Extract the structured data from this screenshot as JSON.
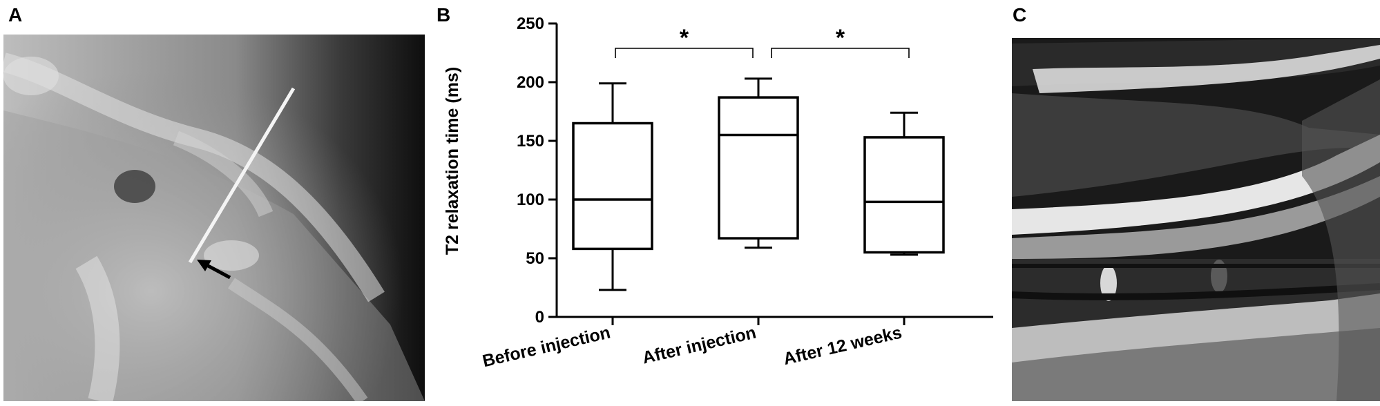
{
  "panels": {
    "a_label": "A",
    "b_label": "B",
    "c_label": "C"
  },
  "chart_data": {
    "type": "box",
    "title": "",
    "xlabel": "",
    "ylabel": "T2 relaxation time (ms)",
    "ylim": [
      0,
      250
    ],
    "yticks": [
      0,
      50,
      100,
      150,
      200,
      250
    ],
    "categories": [
      "Before injection",
      "After injection",
      "After 12 weeks"
    ],
    "boxes": [
      {
        "min": 23,
        "q1": 58,
        "median": 100,
        "q3": 165,
        "max": 199
      },
      {
        "min": 59,
        "q1": 67,
        "median": 155,
        "q3": 187,
        "max": 203
      },
      {
        "min": 53,
        "q1": 55,
        "median": 98,
        "q3": 153,
        "max": 174
      }
    ],
    "significance": [
      {
        "from": 0,
        "to": 1,
        "label": "*"
      },
      {
        "from": 1,
        "to": 2,
        "label": "*"
      }
    ],
    "grid": false,
    "legend": "none"
  },
  "colors": {
    "box_stroke": "#000000",
    "xray_dark": "#1a1a1a",
    "xray_light": "#d9d9d9",
    "mri_dark": "#161616",
    "mri_light": "#e8e8e8"
  }
}
